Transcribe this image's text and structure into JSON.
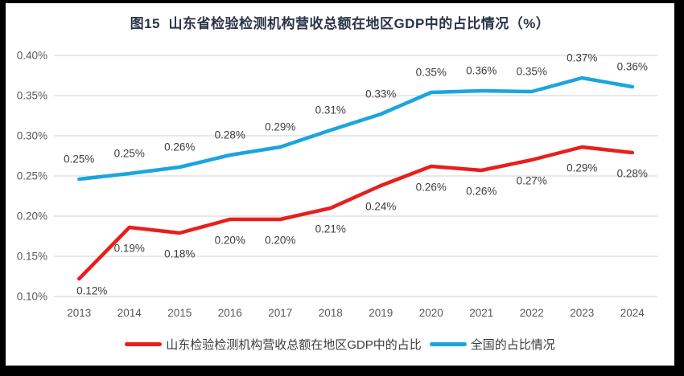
{
  "page": {
    "background": "#ffffff",
    "frame_color": "#000000"
  },
  "chart_data": {
    "type": "line",
    "title": "图15  山东省检验检测机构营收总额在地区GDP中的占比情况（%）",
    "xlabel": "",
    "ylabel": "",
    "categories": [
      "2013",
      "2014",
      "2015",
      "2016",
      "2017",
      "2018",
      "2019",
      "2020",
      "2021",
      "2022",
      "2023",
      "2024"
    ],
    "series": [
      {
        "name": "山东检验检测机构营收总额在地区GDP中的占比",
        "color": "#e81e1c",
        "values": [
          0.12,
          0.19,
          0.18,
          0.2,
          0.2,
          0.21,
          0.24,
          0.26,
          0.26,
          0.27,
          0.29,
          0.28
        ],
        "labels": [
          "0.12%",
          "0.19%",
          "0.18%",
          "0.20%",
          "0.20%",
          "0.21%",
          "0.24%",
          "0.26%",
          "0.26%",
          "0.27%",
          "0.29%",
          "0.28%"
        ],
        "plot_values": [
          0.122,
          0.186,
          0.179,
          0.196,
          0.196,
          0.21,
          0.238,
          0.262,
          0.257,
          0.27,
          0.286,
          0.279
        ],
        "label_position": "below",
        "label_offset": [
          0,
          26
        ],
        "label_overrides": {
          "0": [
            16,
            -11
          ]
        }
      },
      {
        "name": "全国的占比情况",
        "color": "#1ba5e0",
        "values": [
          0.25,
          0.25,
          0.26,
          0.28,
          0.29,
          0.31,
          0.33,
          0.35,
          0.36,
          0.35,
          0.37,
          0.36
        ],
        "labels": [
          "0.25%",
          "0.25%",
          "0.26%",
          "0.28%",
          "0.29%",
          "0.31%",
          "0.33%",
          "0.35%",
          "0.36%",
          "0.35%",
          "0.37%",
          "0.36%"
        ],
        "plot_values": [
          0.246,
          0.253,
          0.261,
          0.276,
          0.286,
          0.307,
          0.327,
          0.354,
          0.356,
          0.355,
          0.372,
          0.361
        ],
        "label_position": "above",
        "label_offset": [
          0,
          -25
        ],
        "label_overrides": {}
      }
    ],
    "ylim": [
      0.1,
      0.4
    ],
    "yticks": [
      {
        "value": 0.4,
        "label": "0.40%"
      },
      {
        "value": 0.35,
        "label": "0.35%"
      },
      {
        "value": 0.3,
        "label": "0.30%"
      },
      {
        "value": 0.25,
        "label": "0.25%"
      },
      {
        "value": 0.2,
        "label": "0.20%"
      },
      {
        "value": 0.15,
        "label": "0.15%"
      },
      {
        "value": 0.1,
        "label": "0.10%"
      }
    ],
    "grid": true,
    "grid_color": "#d9d9d9",
    "legend_position": "bottom"
  }
}
